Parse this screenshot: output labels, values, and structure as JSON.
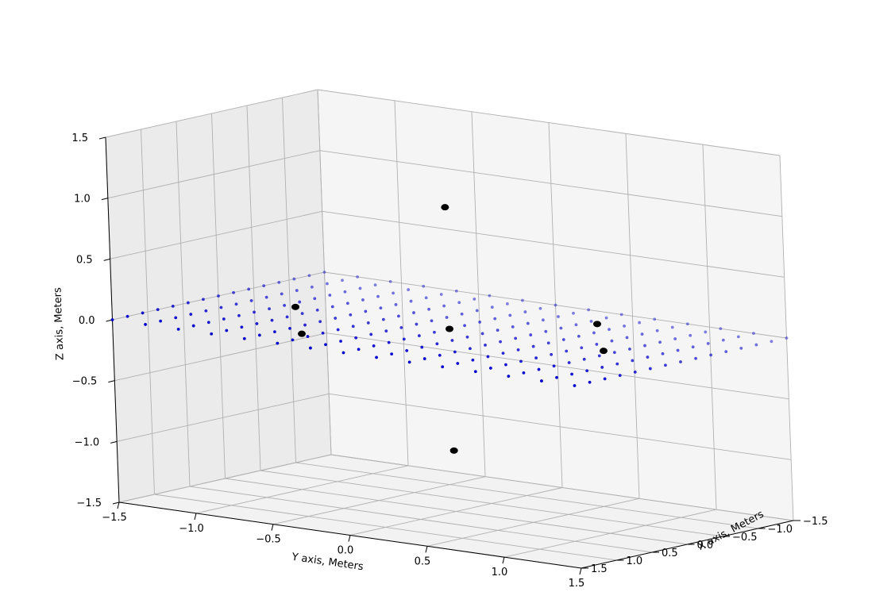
{
  "chart_data": {
    "type": "scatter3d",
    "title": "",
    "xlabel": "X axis, Meters",
    "ylabel": "Y axis, Meters",
    "zlabel": "Z axis, Meters",
    "xlim": [
      -1.5,
      1.5
    ],
    "ylim": [
      -1.5,
      1.5
    ],
    "zlim": [
      -1.5,
      1.5
    ],
    "x_ticks": [
      "−1.5",
      "−1.0",
      "−0.5",
      "0.0",
      "0.5",
      "1.0",
      "1.5"
    ],
    "y_ticks": [
      "−1.5",
      "−1.0",
      "−0.5",
      "0.0",
      "0.5",
      "1.0",
      "1.5"
    ],
    "z_ticks": [
      "−1.5",
      "−1.0",
      "−0.5",
      "0.0",
      "0.5",
      "1.0",
      "1.5"
    ],
    "grid": true,
    "series": [
      {
        "marker": "small-dot",
        "color": "#0000cc",
        "grid_plane": {
          "z": 0.0,
          "x_range": [
            -1.5,
            1.5
          ],
          "y_range": [
            -1.5,
            1.5
          ],
          "count_per_side": 15
        }
      },
      {
        "marker": "large-dot",
        "color": "#000000",
        "points": [
          [
            0.0,
            0.0,
            1.0
          ],
          [
            0.0,
            0.0,
            0.0
          ],
          [
            0.0,
            0.0,
            -1.0
          ],
          [
            1.0,
            -0.5,
            0.0
          ],
          [
            -1.0,
            0.5,
            0.0
          ],
          [
            0.0,
            -1.0,
            0.0
          ],
          [
            0.0,
            1.0,
            0.0
          ]
        ]
      }
    ]
  }
}
